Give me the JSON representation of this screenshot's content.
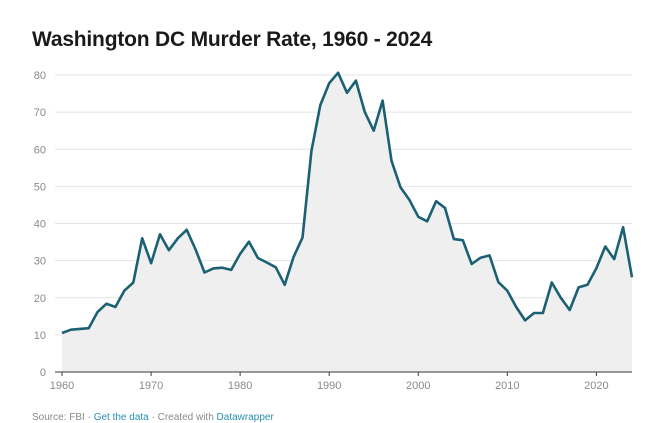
{
  "chart_data": {
    "type": "area",
    "title": "Washington DC Murder Rate, 1960 - 2024",
    "xlabel": "",
    "ylabel": "",
    "x": [
      1960,
      1961,
      1962,
      1963,
      1964,
      1965,
      1966,
      1967,
      1968,
      1969,
      1970,
      1971,
      1972,
      1973,
      1974,
      1975,
      1976,
      1977,
      1978,
      1979,
      1980,
      1981,
      1982,
      1983,
      1984,
      1985,
      1986,
      1987,
      1988,
      1989,
      1990,
      1991,
      1992,
      1993,
      1994,
      1995,
      1996,
      1997,
      1998,
      1999,
      2000,
      2001,
      2002,
      2003,
      2004,
      2005,
      2006,
      2007,
      2008,
      2009,
      2010,
      2011,
      2012,
      2013,
      2014,
      2015,
      2016,
      2017,
      2018,
      2019,
      2020,
      2021,
      2022,
      2023,
      2024
    ],
    "series": [
      {
        "values": [
          10.5,
          11.4,
          11.6,
          11.8,
          16.2,
          18.4,
          17.5,
          21.9,
          24.1,
          36.0,
          29.3,
          37.1,
          32.8,
          36.0,
          38.3,
          33.0,
          26.8,
          27.9,
          28.1,
          27.5,
          31.8,
          35.1,
          30.7,
          29.5,
          28.2,
          23.5,
          31.0,
          36.2,
          59.5,
          71.9,
          77.8,
          80.6,
          75.2,
          78.5,
          70.0,
          65.0,
          73.1,
          56.9,
          49.8,
          46.4,
          41.8,
          40.6,
          46.0,
          44.2,
          35.8,
          35.5,
          29.1,
          30.8,
          31.4,
          24.2,
          21.9,
          17.5,
          13.9,
          15.9,
          15.9,
          24.1,
          20.0,
          16.7,
          22.8,
          23.5,
          28.0,
          33.8,
          30.4,
          39.0,
          25.5
        ]
      }
    ],
    "xlim": [
      1960,
      2024
    ],
    "ylim": [
      0,
      80
    ],
    "xticks": [
      1960,
      1970,
      1980,
      1990,
      2000,
      2010,
      2020
    ],
    "yticks": [
      0,
      10,
      20,
      30,
      40,
      50,
      60,
      70,
      80
    ],
    "grid": true,
    "colors": {
      "line": "#1c6173",
      "fill": "#efefef",
      "grid": "#e4e4e4",
      "axis": "#3a3a3a"
    }
  },
  "footer": {
    "source_label": "Source: FBI · ",
    "get_data": "Get the data",
    "created_with": " · Created with ",
    "tool": "Datawrapper"
  }
}
